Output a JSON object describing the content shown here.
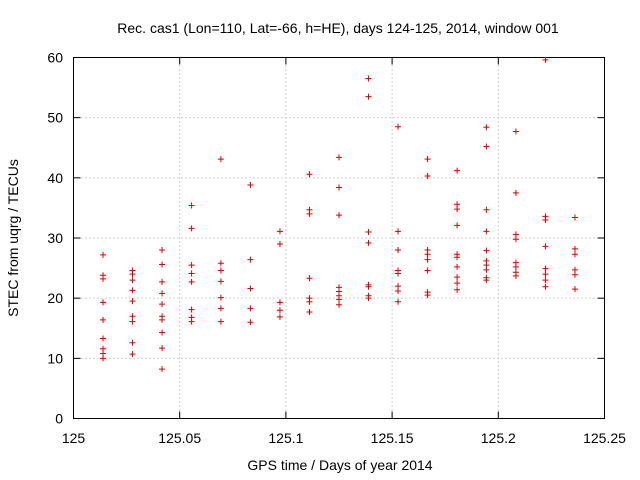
{
  "chart_data": {
    "type": "scatter",
    "title": "Rec. cas1 (Lon=110, Lat=-66, h=HE), days 124-125, 2014, window 001",
    "xlabel": "GPS time / Days of year 2014",
    "ylabel": "STEC from uqrg / TECUs",
    "xlim": [
      125,
      125.25
    ],
    "ylim": [
      0,
      60
    ],
    "x_ticks": [
      "125",
      "125.05",
      "125.1",
      "125.15",
      "125.2",
      "125.25"
    ],
    "y_ticks": [
      "0",
      "10",
      "20",
      "30",
      "40",
      "50",
      "60"
    ],
    "grid": true,
    "marker": "+",
    "color": "#e00000",
    "points": [
      [
        125.0139,
        27.2
      ],
      [
        125.0139,
        23.8
      ],
      [
        125.0139,
        23.2
      ],
      [
        125.0139,
        19.3
      ],
      [
        125.0139,
        16.4
      ],
      [
        125.0139,
        13.3
      ],
      [
        125.0139,
        11.6
      ],
      [
        125.0139,
        10.8
      ],
      [
        125.0139,
        10.0
      ],
      [
        125.0278,
        24.6
      ],
      [
        125.0278,
        24.0
      ],
      [
        125.0278,
        23.0
      ],
      [
        125.0278,
        21.3
      ],
      [
        125.0278,
        19.5
      ],
      [
        125.0278,
        17.0
      ],
      [
        125.0278,
        16.1
      ],
      [
        125.0278,
        12.6
      ],
      [
        125.0278,
        10.7
      ],
      [
        125.0417,
        28.0
      ],
      [
        125.0417,
        25.6
      ],
      [
        125.0417,
        22.7
      ],
      [
        125.0417,
        20.8
      ],
      [
        125.0417,
        19.0
      ],
      [
        125.0417,
        17.0
      ],
      [
        125.0417,
        16.4
      ],
      [
        125.0417,
        14.3
      ],
      [
        125.0417,
        11.7
      ],
      [
        125.0417,
        8.2
      ],
      [
        125.0556,
        35.4
      ],
      [
        125.0556,
        31.6
      ],
      [
        125.0556,
        25.5
      ],
      [
        125.0556,
        24.1
      ],
      [
        125.0556,
        22.7
      ],
      [
        125.0556,
        18.1
      ],
      [
        125.0556,
        16.8
      ],
      [
        125.0556,
        16.1
      ],
      [
        125.0694,
        43.1
      ],
      [
        125.0694,
        25.8
      ],
      [
        125.0694,
        24.6
      ],
      [
        125.0694,
        22.8
      ],
      [
        125.0694,
        20.1
      ],
      [
        125.0694,
        18.3
      ],
      [
        125.0694,
        16.1
      ],
      [
        125.0833,
        38.8
      ],
      [
        125.0833,
        26.4
      ],
      [
        125.0833,
        21.6
      ],
      [
        125.0833,
        18.3
      ],
      [
        125.0833,
        16.0
      ],
      [
        125.0972,
        31.1
      ],
      [
        125.0972,
        29.0
      ],
      [
        125.0972,
        19.3
      ],
      [
        125.0972,
        18.0
      ],
      [
        125.0972,
        16.9
      ],
      [
        125.1111,
        40.6
      ],
      [
        125.1111,
        34.7
      ],
      [
        125.1111,
        34.0
      ],
      [
        125.1111,
        23.3
      ],
      [
        125.1111,
        20.0
      ],
      [
        125.1111,
        19.4
      ],
      [
        125.1111,
        17.7
      ],
      [
        125.125,
        43.4
      ],
      [
        125.125,
        38.4
      ],
      [
        125.125,
        33.8
      ],
      [
        125.125,
        21.8
      ],
      [
        125.125,
        21.1
      ],
      [
        125.125,
        20.4
      ],
      [
        125.125,
        19.8
      ],
      [
        125.125,
        18.9
      ],
      [
        125.1389,
        56.5
      ],
      [
        125.1389,
        53.5
      ],
      [
        125.1389,
        31.0
      ],
      [
        125.1389,
        29.2
      ],
      [
        125.1389,
        22.2
      ],
      [
        125.1389,
        21.9
      ],
      [
        125.1389,
        20.4
      ],
      [
        125.1389,
        20.0
      ],
      [
        125.1528,
        48.5
      ],
      [
        125.1528,
        31.1
      ],
      [
        125.1528,
        28.0
      ],
      [
        125.1528,
        24.6
      ],
      [
        125.1528,
        24.1
      ],
      [
        125.1528,
        22.0
      ],
      [
        125.1528,
        21.2
      ],
      [
        125.1528,
        19.4
      ],
      [
        125.1667,
        43.1
      ],
      [
        125.1667,
        40.3
      ],
      [
        125.1667,
        28.0
      ],
      [
        125.1667,
        27.3
      ],
      [
        125.1667,
        26.4
      ],
      [
        125.1667,
        24.6
      ],
      [
        125.1667,
        21.0
      ],
      [
        125.1667,
        20.5
      ],
      [
        125.1806,
        41.2
      ],
      [
        125.1806,
        35.6
      ],
      [
        125.1806,
        34.8
      ],
      [
        125.1806,
        32.1
      ],
      [
        125.1806,
        27.3
      ],
      [
        125.1806,
        26.8
      ],
      [
        125.1806,
        25.2
      ],
      [
        125.1806,
        23.5
      ],
      [
        125.1806,
        22.5
      ],
      [
        125.1806,
        21.4
      ],
      [
        125.1944,
        48.4
      ],
      [
        125.1944,
        45.2
      ],
      [
        125.1944,
        34.7
      ],
      [
        125.1944,
        31.1
      ],
      [
        125.1944,
        27.9
      ],
      [
        125.1944,
        26.2
      ],
      [
        125.1944,
        25.5
      ],
      [
        125.1944,
        24.7
      ],
      [
        125.1944,
        23.4
      ],
      [
        125.1944,
        23.0
      ],
      [
        125.2083,
        47.7
      ],
      [
        125.2083,
        37.5
      ],
      [
        125.2083,
        30.6
      ],
      [
        125.2083,
        29.8
      ],
      [
        125.2083,
        25.9
      ],
      [
        125.2083,
        25.2
      ],
      [
        125.2083,
        24.3
      ],
      [
        125.2083,
        23.7
      ],
      [
        125.2222,
        59.6
      ],
      [
        125.2222,
        33.6
      ],
      [
        125.2222,
        33.0
      ],
      [
        125.2222,
        28.6
      ],
      [
        125.2222,
        24.9
      ],
      [
        125.2222,
        24.0
      ],
      [
        125.2222,
        23.0
      ],
      [
        125.2222,
        21.9
      ],
      [
        125.2361,
        33.4
      ],
      [
        125.2361,
        28.2
      ],
      [
        125.2361,
        27.3
      ],
      [
        125.2361,
        24.7
      ],
      [
        125.2361,
        23.9
      ],
      [
        125.2361,
        21.5
      ]
    ]
  }
}
